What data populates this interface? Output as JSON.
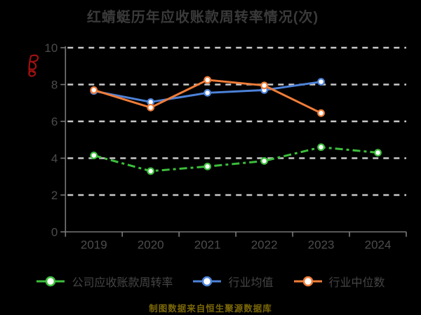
{
  "caption": "制图数据来自恒生聚源数据库",
  "annotation": {
    "type": "red-handwritten-mark",
    "color": "#a31111"
  },
  "colors": {
    "background": "#000000",
    "title_text": "#3a3a3a",
    "axis_label": "#4c4c4c",
    "gridline": "#c9c9c9",
    "axis_line": "#7a7a7a",
    "legend_text": "#454545",
    "caption_text": "#7a6708",
    "marker_fill": "#ffffff"
  },
  "chart_data": {
    "type": "line",
    "title": "红蜻蜓历年应收账款周转率情况(次)",
    "xlabel": "",
    "ylabel": "",
    "categories": [
      "2019",
      "2020",
      "2021",
      "2022",
      "2023",
      "2024"
    ],
    "series": [
      {
        "name": "公司应收账款周转率",
        "color": "#3cbe3c",
        "line_style": "dashed",
        "values": [
          4.15,
          3.3,
          3.55,
          3.85,
          4.6,
          4.3
        ]
      },
      {
        "name": "行业均值",
        "color": "#4d82d9",
        "line_style": "solid",
        "values": [
          7.65,
          7.05,
          7.55,
          7.7,
          8.15,
          null
        ]
      },
      {
        "name": "行业中位数",
        "color": "#ef7d39",
        "line_style": "solid",
        "values": [
          7.7,
          6.75,
          8.25,
          7.95,
          6.45,
          null
        ]
      }
    ],
    "ylim": [
      0,
      10
    ],
    "yticks": [
      0,
      2,
      4,
      6,
      8,
      10
    ],
    "grid": "horizontal-dashed",
    "legend_position": "bottom"
  }
}
